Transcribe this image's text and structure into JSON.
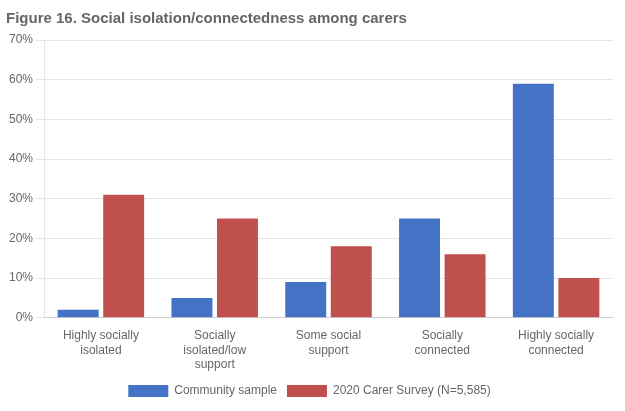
{
  "chart_data": {
    "type": "bar",
    "title": "Figure 16. Social isolation/connectedness among carers",
    "categories": [
      "Highly socially\nisolated",
      "Socially\nisolated/low\nsupport",
      "Some social\nsupport",
      "Socially\nconnected",
      "Highly socially\nconnected"
    ],
    "series": [
      {
        "name": "Community sample",
        "color": "#4472C4",
        "values": [
          2,
          5,
          9,
          25,
          59
        ]
      },
      {
        "name": "2020 Carer Survey (N=5,585)",
        "color": "#C0504D",
        "values": [
          31,
          25,
          18,
          16,
          10
        ]
      }
    ],
    "ylim": [
      0,
      70
    ],
    "yticks": [
      {
        "value": 0,
        "label": "0%"
      },
      {
        "value": 10,
        "label": "10%"
      },
      {
        "value": 20,
        "label": "20%"
      },
      {
        "value": 30,
        "label": "30%"
      },
      {
        "value": 40,
        "label": "40%"
      },
      {
        "value": 50,
        "label": "50%"
      },
      {
        "value": 60,
        "label": "60%"
      },
      {
        "value": 70,
        "label": "70%"
      }
    ],
    "grid": true,
    "legend": "bottom"
  }
}
